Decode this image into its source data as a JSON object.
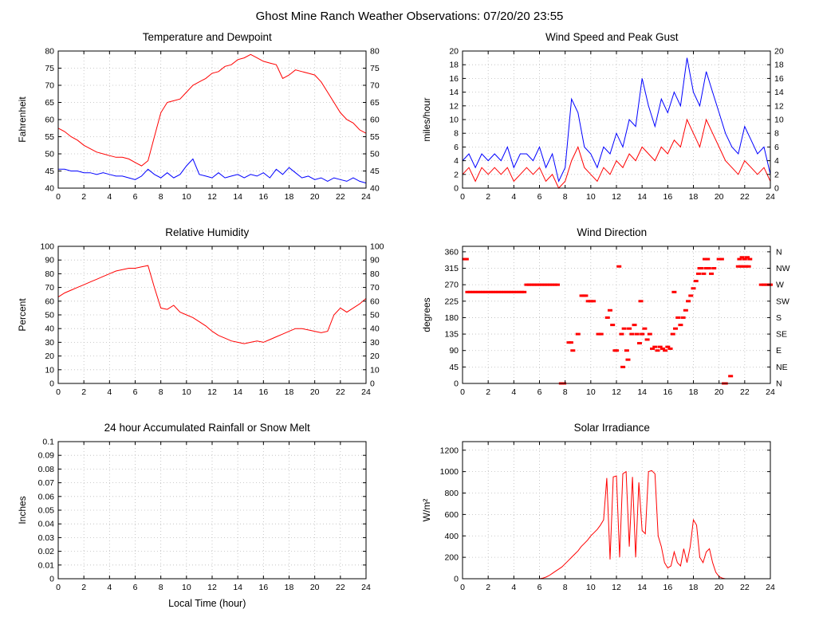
{
  "page_title": "Ghost Mine Ranch Weather Observations: 07/20/20 23:55",
  "colors": {
    "red": "#ff0000",
    "blue": "#0000ff",
    "grid": "#bbbbbb",
    "axis": "#000000"
  },
  "chart_data": [
    {
      "type": "line",
      "title": "Temperature and Dewpoint",
      "ylabel": "Fahrenheit",
      "xlim": [
        0,
        24
      ],
      "xtick_step": 2,
      "ylim": [
        40,
        80
      ],
      "ytick_step": 5,
      "mirror_right": true,
      "series": [
        {
          "name": "Temperature",
          "color": "#ff0000",
          "dt": 0.5,
          "values": [
            57.5,
            56.5,
            55,
            54,
            52.5,
            51.5,
            50.5,
            50,
            49.5,
            49,
            49,
            48.5,
            47.5,
            46.5,
            48,
            55,
            62,
            65,
            65.5,
            66,
            68,
            70,
            71,
            72,
            73.5,
            74,
            75.5,
            76,
            77.5,
            78,
            79,
            78,
            77,
            76.5,
            76,
            72,
            73,
            74.5,
            74,
            73.5,
            73,
            71,
            68,
            65,
            62,
            60,
            59,
            57,
            56
          ]
        },
        {
          "name": "Dewpoint",
          "color": "#0000ff",
          "dt": 0.5,
          "values": [
            45.5,
            45.5,
            45,
            45,
            44.5,
            44.5,
            44,
            44.5,
            44,
            43.5,
            43.5,
            43,
            42.5,
            43.5,
            45.5,
            44,
            43,
            44.5,
            43,
            44,
            46.5,
            48.5,
            44,
            43.5,
            43,
            44.5,
            43,
            43.5,
            44,
            43,
            44,
            43.5,
            44.5,
            43,
            45.5,
            44,
            46,
            44.5,
            43,
            43.5,
            42.5,
            43,
            42,
            43,
            42.5,
            42,
            43,
            42,
            41.5
          ]
        }
      ]
    },
    {
      "type": "line",
      "title": "Wind Speed and Peak Gust",
      "ylabel": "miles/hour",
      "xlim": [
        0,
        24
      ],
      "xtick_step": 2,
      "ylim": [
        0,
        20
      ],
      "ytick_step": 2,
      "mirror_right": true,
      "series": [
        {
          "name": "Peak Gust",
          "color": "#0000ff",
          "dt": 0.5,
          "values": [
            4,
            5,
            3,
            5,
            4,
            5,
            4,
            6,
            3,
            5,
            5,
            4,
            6,
            3,
            5,
            1,
            3,
            13,
            11,
            6,
            5,
            3,
            6,
            5,
            8,
            6,
            10,
            9,
            16,
            12,
            9,
            13,
            11,
            14,
            12,
            19,
            14,
            12,
            17,
            14,
            11,
            8,
            6,
            5,
            9,
            7,
            5,
            6,
            2
          ]
        },
        {
          "name": "Wind Speed",
          "color": "#ff0000",
          "dt": 0.5,
          "values": [
            2,
            3,
            1,
            3,
            2,
            3,
            2,
            3,
            1,
            2,
            3,
            2,
            3,
            1,
            2,
            0,
            1,
            4,
            6,
            3,
            2,
            1,
            3,
            2,
            4,
            3,
            5,
            4,
            6,
            5,
            4,
            6,
            5,
            7,
            6,
            10,
            8,
            6,
            10,
            8,
            6,
            4,
            3,
            2,
            4,
            3,
            2,
            3,
            1
          ]
        }
      ]
    },
    {
      "type": "line",
      "title": "Relative Humidity",
      "ylabel": "Percent",
      "xlim": [
        0,
        24
      ],
      "xtick_step": 2,
      "ylim": [
        0,
        100
      ],
      "ytick_step": 10,
      "mirror_right": true,
      "series": [
        {
          "name": "Relative Humidity",
          "color": "#ff0000",
          "dt": 0.5,
          "values": [
            63,
            66,
            68,
            70,
            72,
            74,
            76,
            78,
            80,
            82,
            83,
            84,
            84,
            85,
            86,
            70,
            55,
            54,
            57,
            52,
            50,
            48,
            45,
            42,
            38,
            35,
            33,
            31,
            30,
            29,
            30,
            31,
            30,
            32,
            34,
            36,
            38,
            40,
            40,
            39,
            38,
            37,
            38,
            50,
            55,
            52,
            55,
            58,
            62
          ]
        }
      ]
    },
    {
      "type": "scatter",
      "title": "Wind Direction",
      "ylabel": "degrees",
      "xlim": [
        0,
        24
      ],
      "xtick_step": 2,
      "ylim": [
        0,
        375
      ],
      "ytick_step": 45,
      "right_labels": [
        "N",
        "NE",
        "E",
        "SE",
        "S",
        "SW",
        "W",
        "NW",
        "N"
      ],
      "series": [
        {
          "name": "Wind Direction",
          "color": "#ff0000",
          "points": [
            [
              0.15,
              340
            ],
            [
              0.3,
              340
            ],
            [
              0.4,
              250
            ],
            [
              0.6,
              250
            ],
            [
              0.8,
              250
            ],
            [
              1.0,
              250
            ],
            [
              1.2,
              250
            ],
            [
              1.4,
              250
            ],
            [
              1.6,
              250
            ],
            [
              1.8,
              250
            ],
            [
              2.0,
              250
            ],
            [
              2.2,
              250
            ],
            [
              2.4,
              250
            ],
            [
              2.6,
              250
            ],
            [
              2.8,
              250
            ],
            [
              3.0,
              250
            ],
            [
              3.2,
              250
            ],
            [
              3.4,
              250
            ],
            [
              3.6,
              250
            ],
            [
              3.8,
              250
            ],
            [
              4.0,
              250
            ],
            [
              4.2,
              250
            ],
            [
              4.4,
              250
            ],
            [
              4.6,
              250
            ],
            [
              4.8,
              250
            ],
            [
              5.0,
              270
            ],
            [
              5.2,
              270
            ],
            [
              5.4,
              270
            ],
            [
              5.6,
              270
            ],
            [
              5.8,
              270
            ],
            [
              6.0,
              270
            ],
            [
              6.2,
              270
            ],
            [
              6.4,
              270
            ],
            [
              6.6,
              270
            ],
            [
              6.8,
              270
            ],
            [
              7.0,
              270
            ],
            [
              7.2,
              270
            ],
            [
              7.4,
              270
            ],
            [
              7.7,
              0
            ],
            [
              7.9,
              0
            ],
            [
              8.3,
              112
            ],
            [
              8.45,
              112
            ],
            [
              8.6,
              90
            ],
            [
              9.0,
              135
            ],
            [
              9.3,
              240
            ],
            [
              9.45,
              240
            ],
            [
              9.6,
              240
            ],
            [
              9.8,
              225
            ],
            [
              10.0,
              225
            ],
            [
              10.2,
              225
            ],
            [
              10.6,
              135
            ],
            [
              10.8,
              135
            ],
            [
              11.3,
              180
            ],
            [
              11.5,
              200
            ],
            [
              11.7,
              160
            ],
            [
              11.9,
              90
            ],
            [
              12.0,
              90
            ],
            [
              12.2,
              320
            ],
            [
              12.4,
              135
            ],
            [
              12.5,
              45
            ],
            [
              12.6,
              150
            ],
            [
              12.8,
              90
            ],
            [
              12.9,
              65
            ],
            [
              13.0,
              150
            ],
            [
              13.2,
              135
            ],
            [
              13.4,
              160
            ],
            [
              13.6,
              135
            ],
            [
              13.8,
              110
            ],
            [
              13.9,
              225
            ],
            [
              14.0,
              135
            ],
            [
              14.2,
              150
            ],
            [
              14.4,
              120
            ],
            [
              14.6,
              135
            ],
            [
              14.8,
              95
            ],
            [
              15.0,
              100
            ],
            [
              15.2,
              90
            ],
            [
              15.4,
              100
            ],
            [
              15.6,
              95
            ],
            [
              15.8,
              90
            ],
            [
              16.0,
              100
            ],
            [
              16.2,
              95
            ],
            [
              16.4,
              135
            ],
            [
              16.5,
              250
            ],
            [
              16.6,
              150
            ],
            [
              16.8,
              180
            ],
            [
              17.0,
              160
            ],
            [
              17.2,
              180
            ],
            [
              17.4,
              200
            ],
            [
              17.6,
              225
            ],
            [
              17.8,
              240
            ],
            [
              18.0,
              260
            ],
            [
              18.2,
              280
            ],
            [
              18.4,
              300
            ],
            [
              18.5,
              315
            ],
            [
              18.6,
              315
            ],
            [
              18.8,
              300
            ],
            [
              18.9,
              340
            ],
            [
              19.0,
              315
            ],
            [
              19.1,
              340
            ],
            [
              19.2,
              315
            ],
            [
              19.4,
              300
            ],
            [
              19.6,
              315
            ],
            [
              20.0,
              340
            ],
            [
              20.2,
              340
            ],
            [
              20.4,
              0
            ],
            [
              20.5,
              0
            ],
            [
              20.9,
              20
            ],
            [
              21.5,
              320
            ],
            [
              21.6,
              340
            ],
            [
              21.7,
              320
            ],
            [
              21.8,
              345
            ],
            [
              21.9,
              320
            ],
            [
              22.0,
              340
            ],
            [
              22.1,
              320
            ],
            [
              22.2,
              345
            ],
            [
              22.3,
              320
            ],
            [
              22.4,
              340
            ],
            [
              23.3,
              270
            ],
            [
              23.5,
              270
            ],
            [
              23.7,
              270
            ],
            [
              23.9,
              270
            ],
            [
              24.0,
              270
            ]
          ]
        }
      ]
    },
    {
      "type": "line",
      "title": "24 hour Accumulated Rainfall or Snow Melt",
      "ylabel": "Inches",
      "xlabel": "Local Time (hour)",
      "xlim": [
        0,
        24
      ],
      "xtick_step": 2,
      "ylim": [
        0,
        0.1
      ],
      "ytick_step": 0.01,
      "mirror_right": false,
      "series": [
        {
          "name": "Rainfall",
          "color": "#ff0000",
          "dt": 24,
          "values": [
            0,
            0
          ]
        }
      ]
    },
    {
      "type": "line",
      "title": "Solar Irradiance",
      "ylabel": "W/m²",
      "xlim": [
        0,
        24
      ],
      "xtick_step": 2,
      "ylim": [
        0,
        1280
      ],
      "ytick_step": 200,
      "mirror_right": false,
      "series": [
        {
          "name": "Solar Irradiance",
          "color": "#ff0000",
          "dt": 0.25,
          "values": [
            0,
            0,
            0,
            0,
            0,
            0,
            0,
            0,
            0,
            0,
            0,
            0,
            0,
            0,
            0,
            0,
            0,
            0,
            0,
            0,
            0,
            0,
            0,
            0,
            0,
            5,
            15,
            30,
            50,
            70,
            90,
            110,
            140,
            170,
            200,
            230,
            260,
            300,
            330,
            360,
            400,
            430,
            460,
            500,
            550,
            940,
            180,
            950,
            960,
            200,
            980,
            1000,
            300,
            950,
            200,
            900,
            450,
            420,
            1000,
            1010,
            980,
            400,
            300,
            150,
            100,
            120,
            250,
            150,
            120,
            280,
            150,
            300,
            550,
            500,
            200,
            150,
            250,
            280,
            150,
            60,
            20,
            5,
            0,
            0,
            0,
            0,
            0,
            0,
            0,
            0,
            0,
            0,
            0,
            0,
            0,
            0,
            0
          ]
        }
      ]
    }
  ]
}
